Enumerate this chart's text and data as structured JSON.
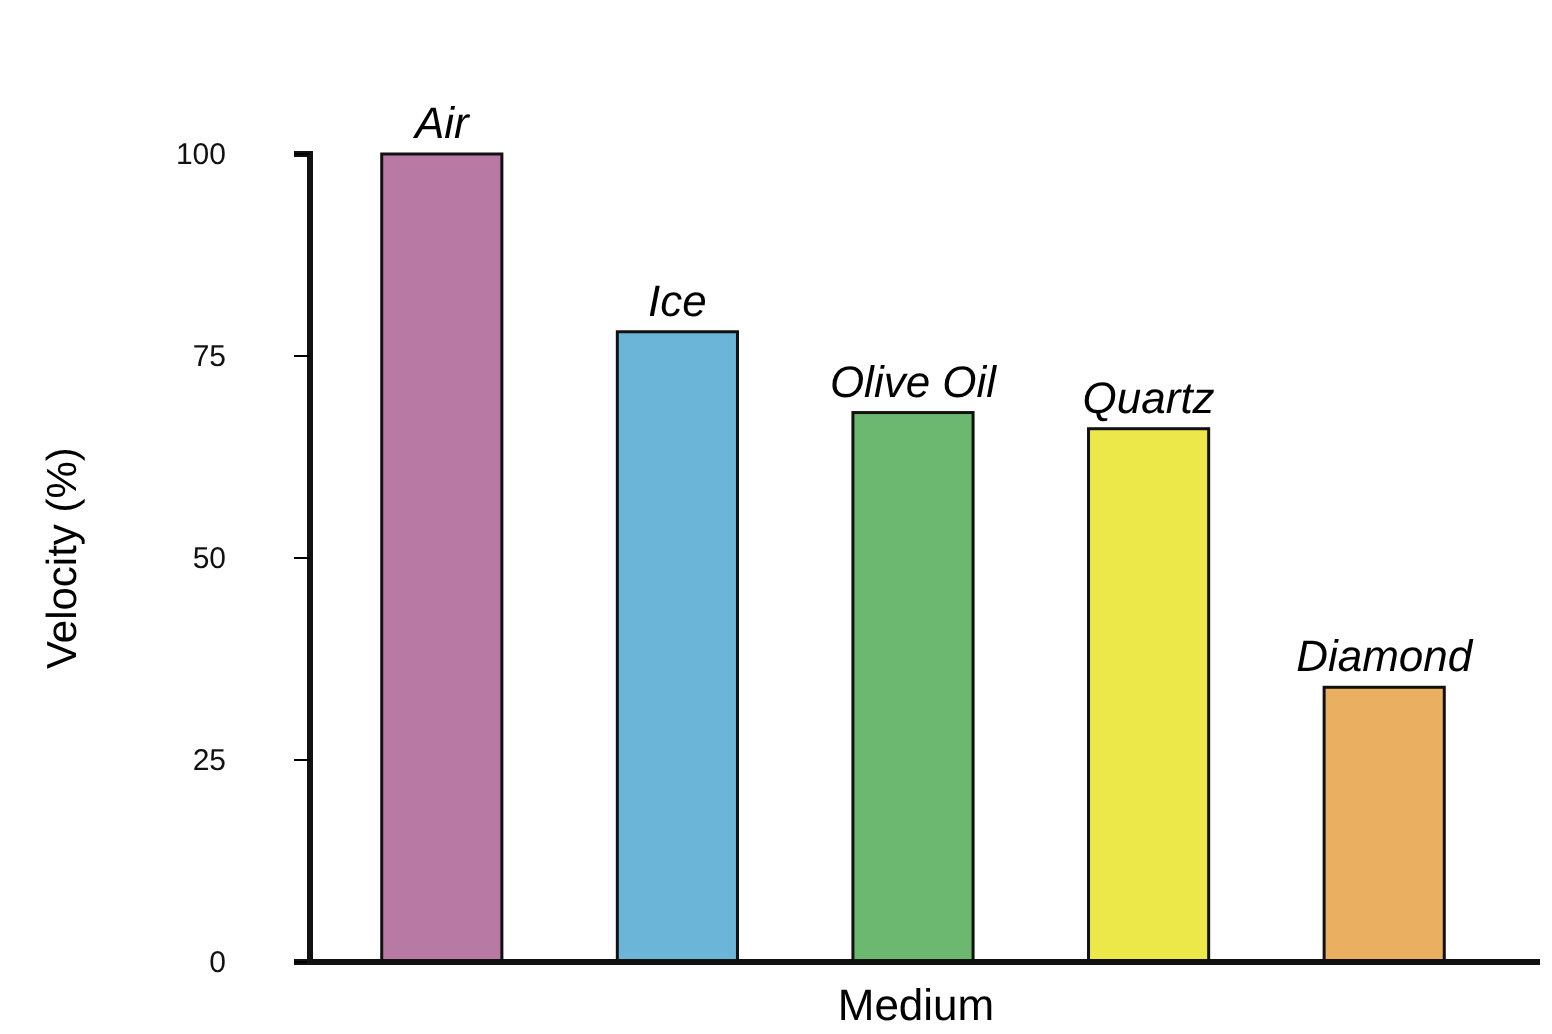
{
  "chart_data": {
    "type": "bar",
    "xlabel": "Medium",
    "ylabel": "Velocity (%)",
    "categories": [
      "Air",
      "Ice",
      "Olive Oil",
      "Quartz",
      "Diamond"
    ],
    "values": [
      100,
      78,
      68,
      66,
      34
    ],
    "colors": [
      "#b87aa5",
      "#6ab5d8",
      "#6db870",
      "#ede84a",
      "#ebaf62"
    ],
    "ylim": [
      0,
      100
    ],
    "yticks": [
      0,
      25,
      50,
      75,
      100
    ],
    "grid": false
  }
}
